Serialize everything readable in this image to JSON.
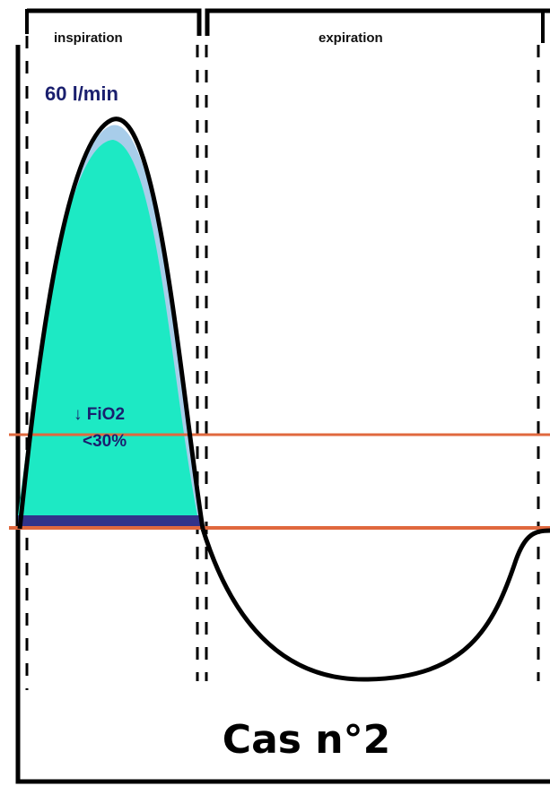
{
  "phases": {
    "inspiration": "inspiration",
    "expiration": "expiration"
  },
  "annotations": {
    "flow": "60 l/min",
    "fio2_arrow": "↓",
    "fio2_name": "FiO2",
    "fio2_value": "<30%"
  },
  "caption": "Cas n°2",
  "colors": {
    "inspired_fill": "#1de9c4",
    "upper_fill": "#a8cdea",
    "base_band": "#32338a",
    "reference_line": "#e0683e",
    "curve": "#000000",
    "text_dark": "#1a1f6e"
  }
}
